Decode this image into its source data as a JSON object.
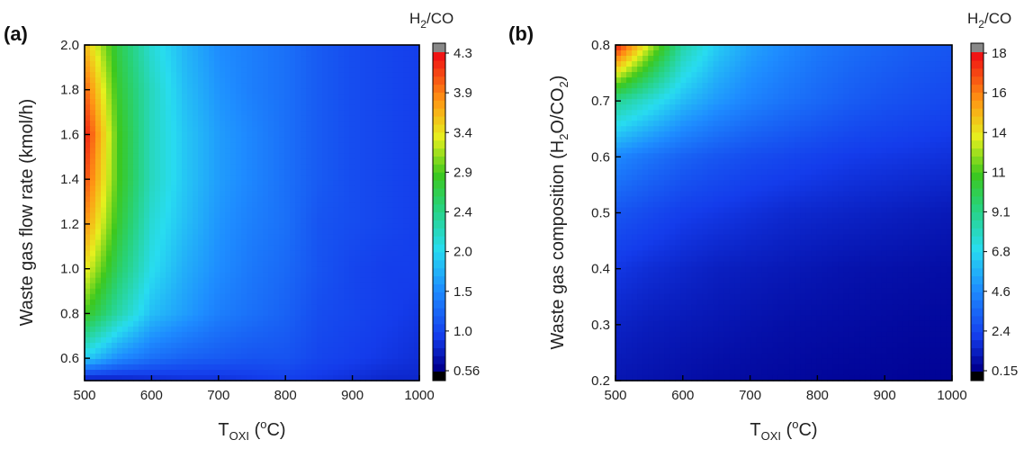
{
  "chart_data": [
    {
      "type": "heatmap",
      "panel_label": "(a)",
      "xlabel": {
        "main": "T",
        "sub": "OXI",
        "rest": " (",
        "sup": "o",
        "end": "C)"
      },
      "ylabel": {
        "text": "Waste gas flow rate (kmol/h)"
      },
      "colorbar_title": {
        "pre": "H",
        "sub": "2",
        "post": "/CO"
      },
      "xlim": [
        500,
        1000
      ],
      "ylim": [
        0.5,
        2.0
      ],
      "x_ticks": [
        "500",
        "600",
        "700",
        "800",
        "900",
        "1000"
      ],
      "y_ticks": [
        "0.6",
        "0.8",
        "1.0",
        "1.2",
        "1.4",
        "1.6",
        "1.8",
        "2.0"
      ],
      "colorbar_ticks": [
        "0.56",
        "1.0",
        "1.5",
        "2.0",
        "2.4",
        "2.9",
        "3.4",
        "3.9",
        "4.3"
      ],
      "zlim": [
        0.56,
        4.3
      ],
      "x": [
        500,
        550,
        600,
        650,
        700,
        750,
        800,
        850,
        900,
        950,
        1000
      ],
      "y": [
        0.5,
        0.6,
        0.8,
        1.0,
        1.2,
        1.4,
        1.6,
        1.8,
        2.0
      ],
      "z": [
        [
          0.7,
          0.75,
          0.8,
          0.85,
          0.85,
          0.9,
          0.95,
          0.9,
          0.85,
          0.8,
          0.8
        ],
        [
          1.9,
          1.5,
          1.3,
          1.2,
          1.15,
          1.1,
          1.1,
          1.0,
          0.95,
          0.9,
          0.85
        ],
        [
          2.9,
          2.3,
          1.8,
          1.6,
          1.4,
          1.3,
          1.2,
          1.05,
          1.0,
          0.95,
          0.9
        ],
        [
          3.4,
          2.6,
          2.0,
          1.7,
          1.5,
          1.35,
          1.25,
          1.1,
          1.0,
          0.95,
          0.95
        ],
        [
          3.8,
          2.8,
          2.1,
          1.8,
          1.55,
          1.4,
          1.3,
          1.1,
          1.05,
          1.0,
          0.95
        ],
        [
          4.1,
          2.9,
          2.2,
          1.85,
          1.6,
          1.45,
          1.3,
          1.15,
          1.05,
          1.0,
          0.95
        ],
        [
          4.3,
          2.9,
          2.2,
          1.85,
          1.6,
          1.45,
          1.3,
          1.15,
          1.05,
          1.0,
          0.95
        ],
        [
          4.0,
          2.8,
          2.2,
          1.8,
          1.55,
          1.4,
          1.3,
          1.15,
          1.05,
          1.0,
          0.95
        ],
        [
          3.6,
          2.7,
          2.1,
          1.75,
          1.5,
          1.4,
          1.3,
          1.15,
          1.05,
          1.0,
          0.95
        ]
      ]
    },
    {
      "type": "heatmap",
      "panel_label": "(b)",
      "xlabel": {
        "main": "T",
        "sub": "OXI",
        "rest": " (",
        "sup": "o",
        "end": "C)"
      },
      "ylabel": {
        "pre": "Waste gas composition (H",
        "sub1": "2",
        "mid": "O/CO",
        "sub2": "2",
        "post": ")"
      },
      "colorbar_title": {
        "pre": "H",
        "sub": "2",
        "post": "/CO"
      },
      "xlim": [
        500,
        1000
      ],
      "ylim": [
        0.2,
        0.8
      ],
      "x_ticks": [
        "500",
        "600",
        "700",
        "800",
        "900",
        "1000"
      ],
      "y_ticks": [
        "0.2",
        "0.3",
        "0.4",
        "0.5",
        "0.6",
        "0.7",
        "0.8"
      ],
      "colorbar_ticks": [
        "0.15",
        "2.4",
        "4.6",
        "6.8",
        "9.1",
        "11",
        "14",
        "16",
        "18"
      ],
      "zlim": [
        0.15,
        18
      ],
      "x": [
        500,
        550,
        600,
        650,
        700,
        750,
        800,
        850,
        900,
        950,
        1000
      ],
      "y": [
        0.2,
        0.3,
        0.4,
        0.5,
        0.6,
        0.7,
        0.8
      ],
      "z": [
        [
          0.8,
          0.7,
          0.6,
          0.5,
          0.45,
          0.4,
          0.35,
          0.3,
          0.3,
          0.25,
          0.25
        ],
        [
          1.2,
          1.0,
          0.9,
          0.8,
          0.7,
          0.6,
          0.55,
          0.5,
          0.45,
          0.4,
          0.4
        ],
        [
          1.8,
          1.5,
          1.3,
          1.1,
          1.0,
          0.9,
          0.8,
          0.7,
          0.65,
          0.6,
          0.55
        ],
        [
          2.8,
          2.4,
          2.0,
          1.8,
          1.6,
          1.4,
          1.3,
          1.2,
          1.1,
          1.0,
          0.9
        ],
        [
          4.5,
          3.8,
          3.2,
          2.8,
          2.5,
          2.3,
          2.1,
          1.9,
          1.8,
          1.7,
          1.6
        ],
        [
          9.0,
          7.5,
          6.0,
          5.0,
          4.3,
          3.8,
          3.4,
          3.0,
          2.7,
          2.5,
          2.3
        ],
        [
          18.0,
          13.0,
          8.5,
          6.5,
          5.3,
          4.6,
          4.0,
          3.6,
          3.3,
          3.0,
          2.8
        ]
      ]
    }
  ]
}
